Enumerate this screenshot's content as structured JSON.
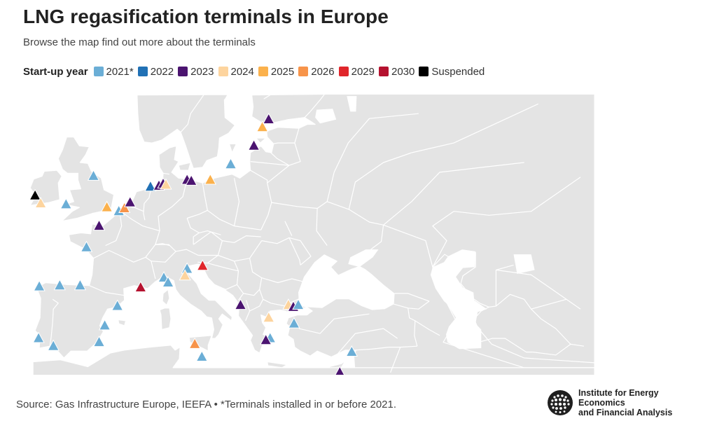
{
  "header": {
    "title": "LNG regasification terminals in Europe",
    "subtitle": "Browse the map find out more about the terminals"
  },
  "legend": {
    "title": "Start-up year",
    "items": [
      {
        "label": "2021*",
        "color": "#6baed6"
      },
      {
        "label": "2022",
        "color": "#2171b5"
      },
      {
        "label": "2023",
        "color": "#4b1470"
      },
      {
        "label": "2024",
        "color": "#fdd49e"
      },
      {
        "label": "2025",
        "color": "#fbb14c"
      },
      {
        "label": "2026",
        "color": "#f7944a"
      },
      {
        "label": "2029",
        "color": "#e0262b"
      },
      {
        "label": "2030",
        "color": "#b5122f"
      },
      {
        "label": "Suspended",
        "color": "#000000"
      }
    ]
  },
  "map": {
    "land_color": "#e4e4e4",
    "border_color": "#ffffff",
    "sea_color": "#ffffff",
    "marker_icon": "triangle-marker-icon",
    "terminals": [
      {
        "year": "Suspended",
        "lon": -9.5,
        "lat": 52.6
      },
      {
        "year": "2024",
        "lon": -8.7,
        "lat": 51.8
      },
      {
        "year": "2021*",
        "lon": -5.1,
        "lat": 51.7
      },
      {
        "year": "2021*",
        "lon": -1.2,
        "lat": 54.6
      },
      {
        "year": "2025",
        "lon": 0.7,
        "lat": 51.4
      },
      {
        "year": "2021*",
        "lon": 2.4,
        "lat": 51.0
      },
      {
        "year": "2026",
        "lon": 3.2,
        "lat": 51.3
      },
      {
        "year": "2023",
        "lon": 4.0,
        "lat": 51.9
      },
      {
        "year": "2023",
        "lon": -0.4,
        "lat": 49.5
      },
      {
        "year": "2021*",
        "lon": -2.2,
        "lat": 47.3
      },
      {
        "year": "2022",
        "lon": 6.9,
        "lat": 53.5
      },
      {
        "year": "2023",
        "lon": 8.1,
        "lat": 53.6
      },
      {
        "year": "2023",
        "lon": 8.7,
        "lat": 53.8
      },
      {
        "year": "2024",
        "lon": 9.1,
        "lat": 53.7
      },
      {
        "year": "2023",
        "lon": 12.1,
        "lat": 54.2
      },
      {
        "year": "2023",
        "lon": 12.7,
        "lat": 54.1
      },
      {
        "year": "2025",
        "lon": 15.4,
        "lat": 54.2
      },
      {
        "year": "2021*",
        "lon": 18.3,
        "lat": 55.8
      },
      {
        "year": "2023",
        "lon": 21.6,
        "lat": 57.7
      },
      {
        "year": "2025",
        "lon": 22.8,
        "lat": 59.6
      },
      {
        "year": "2023",
        "lon": 23.7,
        "lat": 60.4
      },
      {
        "year": "2021*",
        "lon": -8.9,
        "lat": 43.3
      },
      {
        "year": "2021*",
        "lon": -6.0,
        "lat": 43.4
      },
      {
        "year": "2021*",
        "lon": -3.1,
        "lat": 43.4
      },
      {
        "year": "2021*",
        "lon": -9.0,
        "lat": 38.0
      },
      {
        "year": "2021*",
        "lon": -6.9,
        "lat": 37.2
      },
      {
        "year": "2021*",
        "lon": -0.4,
        "lat": 37.6
      },
      {
        "year": "2021*",
        "lon": 0.4,
        "lat": 39.3
      },
      {
        "year": "2021*",
        "lon": 2.2,
        "lat": 41.3
      },
      {
        "year": "2030",
        "lon": 5.5,
        "lat": 43.2
      },
      {
        "year": "2021*",
        "lon": 8.8,
        "lat": 44.2
      },
      {
        "year": "2021*",
        "lon": 9.4,
        "lat": 43.7
      },
      {
        "year": "2021*",
        "lon": 12.1,
        "lat": 45.1
      },
      {
        "year": "2024",
        "lon": 11.8,
        "lat": 44.4
      },
      {
        "year": "2029",
        "lon": 14.3,
        "lat": 45.4
      },
      {
        "year": "2026",
        "lon": 13.2,
        "lat": 37.4
      },
      {
        "year": "2021*",
        "lon": 14.2,
        "lat": 36.1
      },
      {
        "year": "2023",
        "lon": 19.7,
        "lat": 41.4
      },
      {
        "year": "2024",
        "lon": 23.7,
        "lat": 40.1
      },
      {
        "year": "2021*",
        "lon": 23.9,
        "lat": 38.0
      },
      {
        "year": "2023",
        "lon": 23.3,
        "lat": 37.8
      },
      {
        "year": "2024",
        "lon": 26.5,
        "lat": 41.4
      },
      {
        "year": "2023",
        "lon": 27.2,
        "lat": 41.2
      },
      {
        "year": "2021*",
        "lon": 27.9,
        "lat": 41.4
      },
      {
        "year": "2021*",
        "lon": 27.3,
        "lat": 39.5
      },
      {
        "year": "2021*",
        "lon": 35.5,
        "lat": 36.6
      },
      {
        "year": "2023",
        "lon": 33.8,
        "lat": 34.5
      }
    ]
  },
  "footer": {
    "source": "Source: Gas Infrastructure Europe, IEEFA • *Terminals installed in or before 2021.",
    "logo_line1": "Institute for Energy Economics",
    "logo_line2": "and Financial Analysis",
    "logo_icon": "globe-icon"
  }
}
